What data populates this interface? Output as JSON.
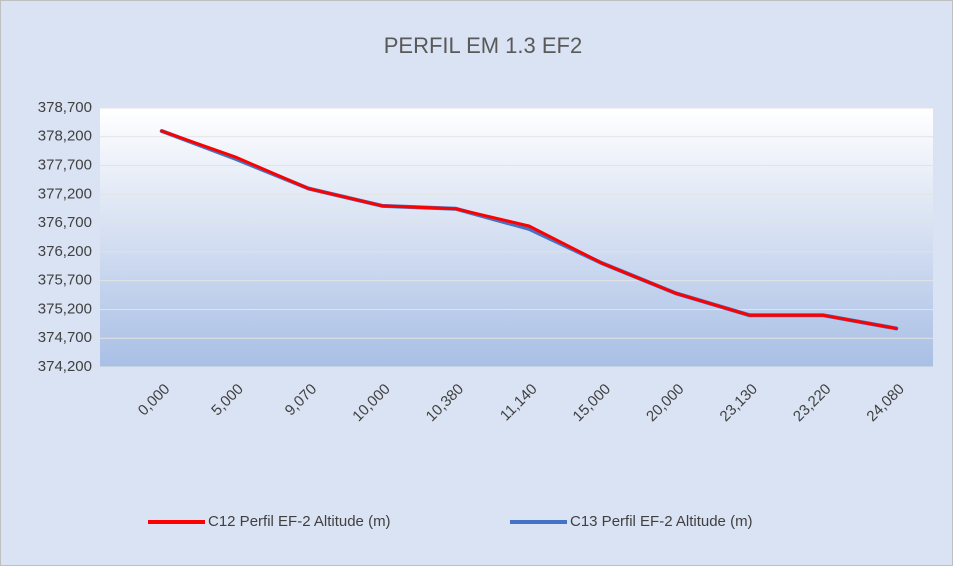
{
  "chart_data": {
    "type": "line",
    "title": "PERFIL EM 1.3 EF2",
    "categories": [
      "0,000",
      "5,000",
      "9,070",
      "10,000",
      "10,380",
      "11,140",
      "15,000",
      "20,000",
      "23,130",
      "23,220",
      "24,080"
    ],
    "series": [
      {
        "name": "C12 Perfil EF-2 Altitude (m)",
        "color": "#ff0000",
        "values": [
          378.3,
          377.85,
          377.3,
          377.0,
          376.95,
          376.65,
          376.0,
          375.48,
          375.1,
          375.1,
          374.87
        ]
      },
      {
        "name": "C13 Perfil EF-2 Altitude (m)",
        "color": "#4472c4",
        "values": [
          378.3,
          377.82,
          377.3,
          377.0,
          376.95,
          376.6,
          376.0,
          375.48,
          375.1,
          375.1,
          374.87
        ]
      }
    ],
    "ylim": [
      374.2,
      378.7
    ],
    "yticks": [
      {
        "value": 374.2,
        "label": "374,200"
      },
      {
        "value": 374.7,
        "label": "374,700"
      },
      {
        "value": 375.2,
        "label": "375,200"
      },
      {
        "value": 375.7,
        "label": "375,700"
      },
      {
        "value": 376.2,
        "label": "376,200"
      },
      {
        "value": 376.7,
        "label": "376,700"
      },
      {
        "value": 377.2,
        "label": "377,200"
      },
      {
        "value": 377.7,
        "label": "377,700"
      },
      {
        "value": 378.2,
        "label": "378,200"
      },
      {
        "value": 378.7,
        "label": "378,700"
      }
    ],
    "grid": true,
    "legend": "bottom"
  }
}
